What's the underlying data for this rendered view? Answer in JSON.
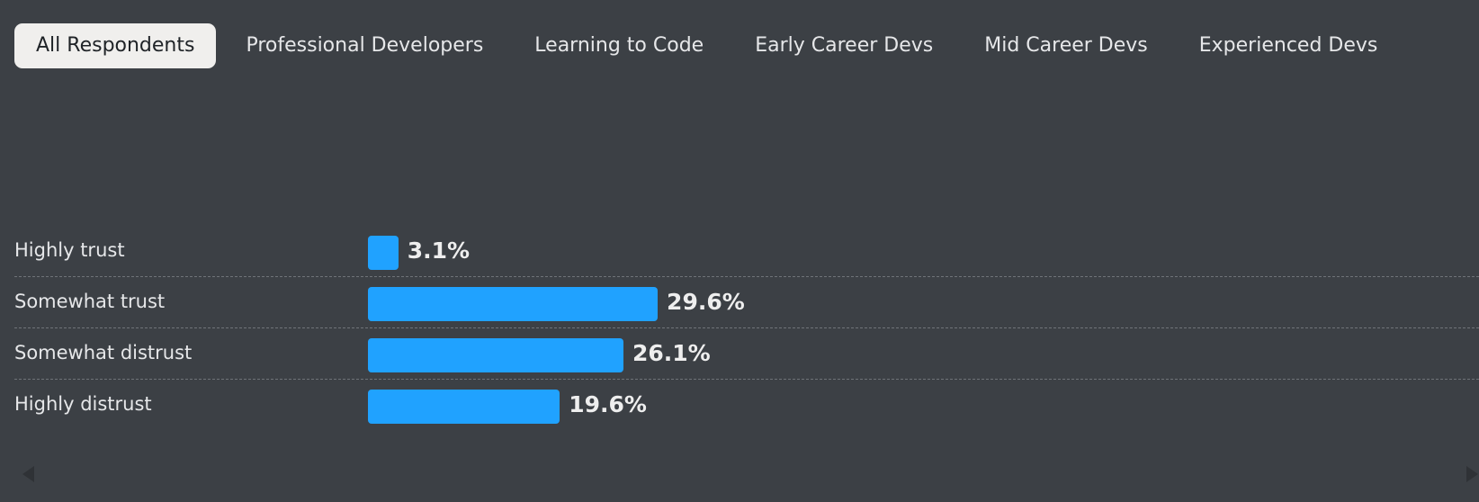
{
  "tabs": [
    {
      "label": "All Respondents",
      "active": true
    },
    {
      "label": "Professional Developers",
      "active": false
    },
    {
      "label": "Learning to Code",
      "active": false
    },
    {
      "label": "Early Career Devs",
      "active": false
    },
    {
      "label": "Mid Career Devs",
      "active": false
    },
    {
      "label": "Experienced Devs",
      "active": false
    }
  ],
  "colors": {
    "bar": "#20a2ff",
    "background": "#3c4045",
    "active_tab": "#f0efed"
  },
  "chart_data": {
    "type": "bar",
    "orientation": "horizontal",
    "categories": [
      "Highly trust",
      "Somewhat trust",
      "Somewhat distrust",
      "Highly distrust"
    ],
    "values": [
      3.1,
      29.6,
      26.1,
      19.6
    ],
    "value_labels": [
      "3.1%",
      "29.6%",
      "26.1%",
      "19.6%"
    ],
    "unit": "%",
    "title": "",
    "xlabel": "",
    "ylabel": "",
    "xlim": [
      0,
      100
    ],
    "grid": false
  }
}
